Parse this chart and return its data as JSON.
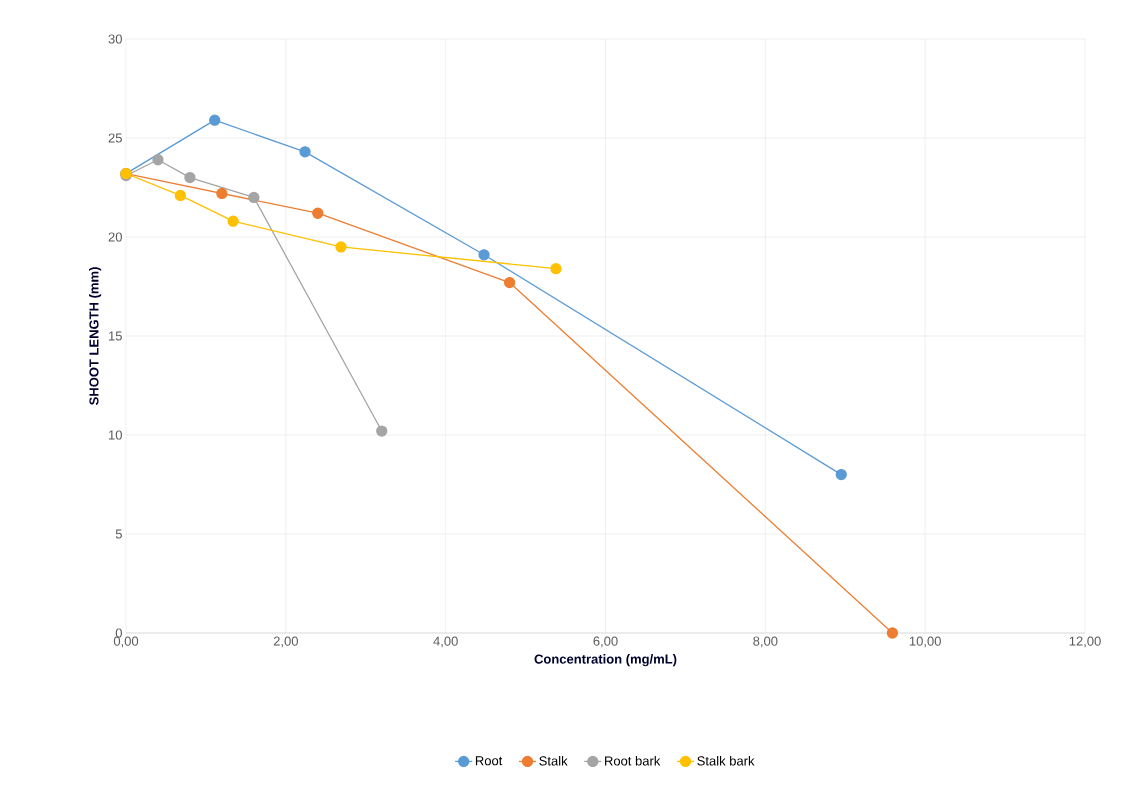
{
  "chart_data": {
    "type": "line",
    "xlabel": "Concentration (mg/mL)",
    "ylabel": "SHOOT LENGTH (mm)",
    "xlim": [
      0,
      12
    ],
    "ylim": [
      0,
      30
    ],
    "xticks": [
      {
        "value": 0,
        "label": "0,00"
      },
      {
        "value": 2,
        "label": "2,00"
      },
      {
        "value": 4,
        "label": "4,00"
      },
      {
        "value": 6,
        "label": "6,00"
      },
      {
        "value": 8,
        "label": "8,00"
      },
      {
        "value": 10,
        "label": "10,00"
      },
      {
        "value": 12,
        "label": "12,00"
      }
    ],
    "yticks": [
      0,
      5,
      10,
      15,
      20,
      25,
      30
    ],
    "grid": true,
    "legend": "bottom",
    "marker": "circle",
    "line_style": "solid",
    "series": [
      {
        "name": "Root",
        "color": "#5b9bd5",
        "x": [
          0,
          1.11,
          2.24,
          4.48,
          8.95
        ],
        "values": [
          23.2,
          25.9,
          24.3,
          19.1,
          8.0
        ]
      },
      {
        "name": "Stalk",
        "color": "#ed7d31",
        "x": [
          0,
          1.2,
          2.4,
          4.8,
          9.59
        ],
        "values": [
          23.2,
          22.2,
          21.2,
          17.7,
          0
        ]
      },
      {
        "name": "Root bark",
        "color": "#a5a5a5",
        "x": [
          0,
          0.4,
          0.8,
          1.6,
          3.2
        ],
        "values": [
          23.1,
          23.9,
          23.0,
          22.0,
          10.2
        ]
      },
      {
        "name": "Stalk bark",
        "color": "#ffc000",
        "x": [
          0,
          0.68,
          1.34,
          2.69,
          5.38
        ],
        "values": [
          23.2,
          22.1,
          20.8,
          19.5,
          18.4
        ]
      }
    ]
  }
}
